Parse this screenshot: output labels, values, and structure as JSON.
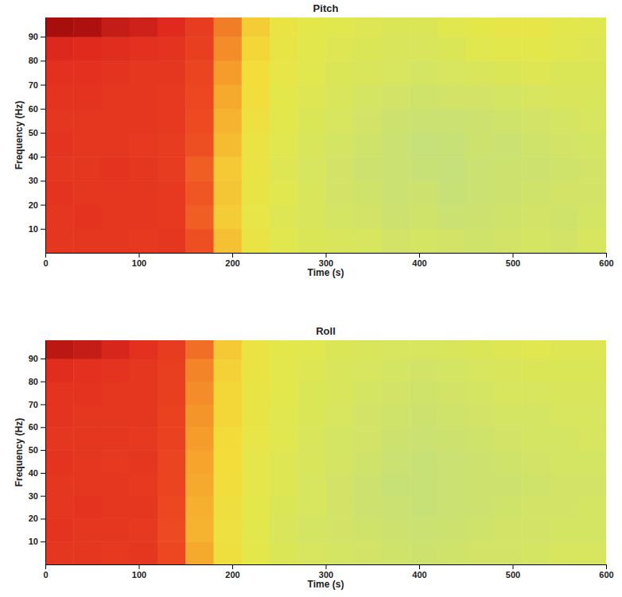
{
  "chart_data": [
    {
      "type": "heatmap",
      "title": "Pitch",
      "x_label": "Time (s)",
      "y_label": "Frequency (Hz)",
      "x": [
        0,
        30,
        60,
        90,
        120,
        150,
        180,
        210,
        240,
        270,
        300,
        330,
        360,
        390,
        420,
        450,
        480,
        510,
        540,
        570,
        600
      ],
      "y": [
        0,
        10,
        20,
        30,
        40,
        50,
        60,
        70,
        80,
        90,
        98
      ],
      "values": [
        [
          0.8,
          0.8,
          0.8,
          0.79,
          0.8,
          0.72,
          0.55,
          0.42,
          0.36,
          0.34,
          0.33,
          0.32,
          0.3,
          0.31,
          0.3,
          0.29,
          0.3,
          0.31,
          0.3,
          0.32
        ],
        [
          0.8,
          0.81,
          0.8,
          0.8,
          0.79,
          0.7,
          0.52,
          0.4,
          0.35,
          0.33,
          0.31,
          0.3,
          0.28,
          0.29,
          0.27,
          0.28,
          0.29,
          0.3,
          0.29,
          0.31
        ],
        [
          0.81,
          0.8,
          0.8,
          0.8,
          0.79,
          0.71,
          0.54,
          0.41,
          0.36,
          0.33,
          0.3,
          0.29,
          0.27,
          0.28,
          0.26,
          0.27,
          0.28,
          0.29,
          0.3,
          0.3
        ],
        [
          0.8,
          0.8,
          0.81,
          0.8,
          0.78,
          0.7,
          0.53,
          0.42,
          0.35,
          0.32,
          0.3,
          0.28,
          0.27,
          0.26,
          0.25,
          0.27,
          0.28,
          0.28,
          0.29,
          0.3
        ],
        [
          0.81,
          0.8,
          0.8,
          0.79,
          0.78,
          0.72,
          0.56,
          0.43,
          0.36,
          0.33,
          0.31,
          0.29,
          0.27,
          0.25,
          0.26,
          0.28,
          0.27,
          0.29,
          0.3,
          0.31
        ],
        [
          0.8,
          0.8,
          0.8,
          0.8,
          0.79,
          0.73,
          0.58,
          0.45,
          0.37,
          0.34,
          0.32,
          0.3,
          0.28,
          0.27,
          0.27,
          0.28,
          0.29,
          0.3,
          0.31,
          0.32
        ],
        [
          0.81,
          0.81,
          0.8,
          0.8,
          0.79,
          0.74,
          0.6,
          0.47,
          0.38,
          0.35,
          0.33,
          0.31,
          0.3,
          0.29,
          0.3,
          0.3,
          0.31,
          0.32,
          0.33,
          0.33
        ],
        [
          0.82,
          0.82,
          0.81,
          0.8,
          0.8,
          0.75,
          0.62,
          0.48,
          0.4,
          0.36,
          0.34,
          0.33,
          0.32,
          0.31,
          0.32,
          0.33,
          0.34,
          0.35,
          0.34,
          0.34
        ],
        [
          0.85,
          0.84,
          0.83,
          0.82,
          0.81,
          0.77,
          0.64,
          0.5,
          0.41,
          0.37,
          0.35,
          0.34,
          0.33,
          0.33,
          0.34,
          0.36,
          0.37,
          0.38,
          0.36,
          0.35
        ],
        [
          0.96,
          0.95,
          0.9,
          0.88,
          0.84,
          0.78,
          0.66,
          0.52,
          0.42,
          0.38,
          0.36,
          0.35,
          0.34,
          0.34,
          0.36,
          0.38,
          0.4,
          0.4,
          0.37,
          0.36
        ]
      ],
      "xlim": [
        0,
        600
      ],
      "xticks": [
        0,
        100,
        200,
        300,
        400,
        500,
        600
      ],
      "ylim": [
        0,
        98
      ],
      "yticks": [
        10,
        20,
        30,
        40,
        50,
        60,
        70,
        80,
        90
      ]
    },
    {
      "type": "heatmap",
      "title": "Roll",
      "x_label": "Time (s)",
      "y_label": "Frequency (Hz)",
      "x": [
        0,
        30,
        60,
        90,
        120,
        150,
        180,
        210,
        240,
        270,
        300,
        330,
        360,
        390,
        420,
        450,
        480,
        510,
        540,
        570,
        600
      ],
      "y": [
        0,
        10,
        20,
        30,
        40,
        50,
        60,
        70,
        80,
        90,
        98
      ],
      "values": [
        [
          0.8,
          0.8,
          0.79,
          0.8,
          0.74,
          0.6,
          0.46,
          0.38,
          0.34,
          0.32,
          0.31,
          0.3,
          0.29,
          0.28,
          0.29,
          0.3,
          0.3,
          0.31,
          0.32,
          0.32
        ],
        [
          0.81,
          0.8,
          0.8,
          0.79,
          0.73,
          0.58,
          0.45,
          0.37,
          0.33,
          0.31,
          0.3,
          0.29,
          0.28,
          0.27,
          0.28,
          0.29,
          0.3,
          0.3,
          0.31,
          0.31
        ],
        [
          0.8,
          0.81,
          0.8,
          0.8,
          0.74,
          0.59,
          0.46,
          0.38,
          0.34,
          0.32,
          0.3,
          0.28,
          0.27,
          0.26,
          0.27,
          0.28,
          0.29,
          0.3,
          0.3,
          0.31
        ],
        [
          0.8,
          0.8,
          0.8,
          0.79,
          0.75,
          0.6,
          0.47,
          0.39,
          0.35,
          0.32,
          0.3,
          0.28,
          0.26,
          0.26,
          0.27,
          0.28,
          0.28,
          0.29,
          0.3,
          0.3
        ],
        [
          0.81,
          0.8,
          0.79,
          0.8,
          0.75,
          0.61,
          0.48,
          0.39,
          0.35,
          0.33,
          0.31,
          0.29,
          0.27,
          0.26,
          0.27,
          0.28,
          0.29,
          0.3,
          0.31,
          0.31
        ],
        [
          0.8,
          0.8,
          0.8,
          0.79,
          0.76,
          0.62,
          0.49,
          0.4,
          0.36,
          0.33,
          0.31,
          0.3,
          0.28,
          0.27,
          0.28,
          0.29,
          0.3,
          0.31,
          0.31,
          0.32
        ],
        [
          0.81,
          0.8,
          0.8,
          0.8,
          0.76,
          0.63,
          0.5,
          0.41,
          0.36,
          0.34,
          0.32,
          0.3,
          0.29,
          0.28,
          0.29,
          0.3,
          0.31,
          0.31,
          0.32,
          0.32
        ],
        [
          0.81,
          0.81,
          0.8,
          0.8,
          0.77,
          0.64,
          0.5,
          0.41,
          0.37,
          0.34,
          0.33,
          0.31,
          0.3,
          0.29,
          0.3,
          0.31,
          0.32,
          0.32,
          0.33,
          0.33
        ],
        [
          0.83,
          0.82,
          0.81,
          0.8,
          0.77,
          0.65,
          0.51,
          0.42,
          0.37,
          0.35,
          0.33,
          0.32,
          0.31,
          0.3,
          0.31,
          0.32,
          0.33,
          0.34,
          0.34,
          0.34
        ],
        [
          0.92,
          0.9,
          0.86,
          0.82,
          0.78,
          0.68,
          0.53,
          0.43,
          0.38,
          0.36,
          0.34,
          0.33,
          0.32,
          0.32,
          0.33,
          0.34,
          0.35,
          0.36,
          0.35,
          0.35
        ]
      ],
      "xlim": [
        0,
        600
      ],
      "xticks": [
        0,
        100,
        200,
        300,
        400,
        500,
        600
      ],
      "ylim": [
        0,
        98
      ],
      "yticks": [
        10,
        20,
        30,
        40,
        50,
        60,
        70,
        80,
        90
      ]
    }
  ]
}
